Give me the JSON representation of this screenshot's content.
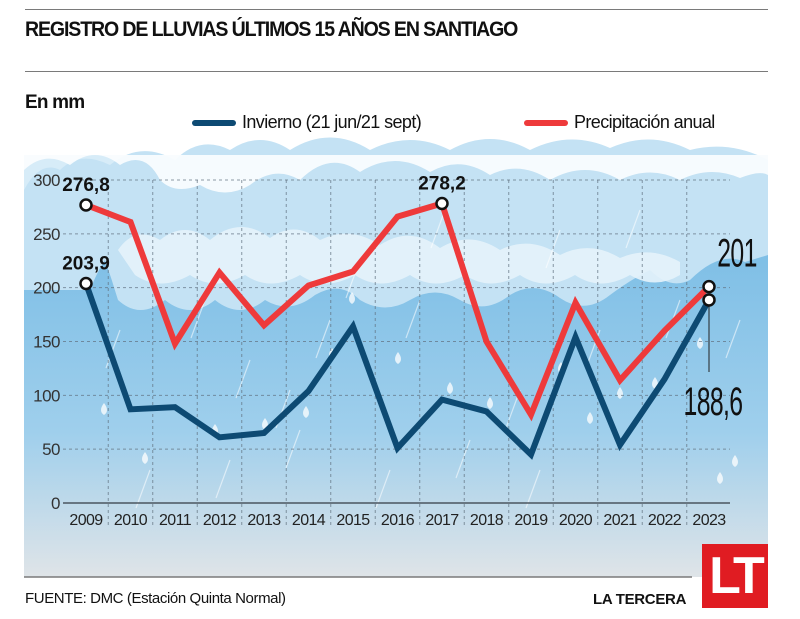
{
  "header": {
    "title": "REGISTRO DE LLUVIAS ÚLTIMOS 15 AÑOS EN SANTIAGO",
    "unit_label": "En mm"
  },
  "legend": [
    {
      "label": "Invierno (21 jun/21 sept)",
      "color": "#0d4a73"
    },
    {
      "label": "Precipitación anual",
      "color": "#ee3a3b"
    }
  ],
  "footer": {
    "source": "FUENTE: DMC (Estación Quinta Normal)",
    "brand": "LA TERCERA",
    "logo_text": "LT",
    "logo_color": "#e01c22"
  },
  "chart_data": {
    "type": "line",
    "title": "REGISTRO DE LLUVIAS ÚLTIMOS 15 AÑOS EN SANTIAGO",
    "xlabel": "",
    "ylabel": "En mm",
    "categories": [
      "2009",
      "2010",
      "2011",
      "2012",
      "2013",
      "2014",
      "2015",
      "2016",
      "2017",
      "2018",
      "2019",
      "2020",
      "2021",
      "2022",
      "2023"
    ],
    "ylim": [
      0,
      300
    ],
    "yticks": [
      0,
      50,
      100,
      150,
      200,
      250,
      300
    ],
    "grid": true,
    "legend_position": "top",
    "series": [
      {
        "name": "Invierno (21 jun/21 sept)",
        "color": "#0d4a73",
        "values": [
          203.9,
          87,
          89,
          61,
          65,
          104,
          164,
          51,
          96,
          85,
          45,
          154,
          54,
          115,
          188.6
        ]
      },
      {
        "name": "Precipitación anual",
        "color": "#ee3a3b",
        "values": [
          276.8,
          261,
          148,
          214,
          165,
          202,
          215,
          266,
          278.2,
          150,
          82,
          186,
          114,
          160,
          201
        ]
      }
    ],
    "annotations": [
      {
        "series": 1,
        "index": 0,
        "text": "276,8"
      },
      {
        "series": 0,
        "index": 0,
        "text": "203,9"
      },
      {
        "series": 1,
        "index": 8,
        "text": "278,2"
      },
      {
        "series": 1,
        "index": 14,
        "text": "201"
      },
      {
        "series": 0,
        "index": 14,
        "text": "188,6"
      }
    ]
  }
}
